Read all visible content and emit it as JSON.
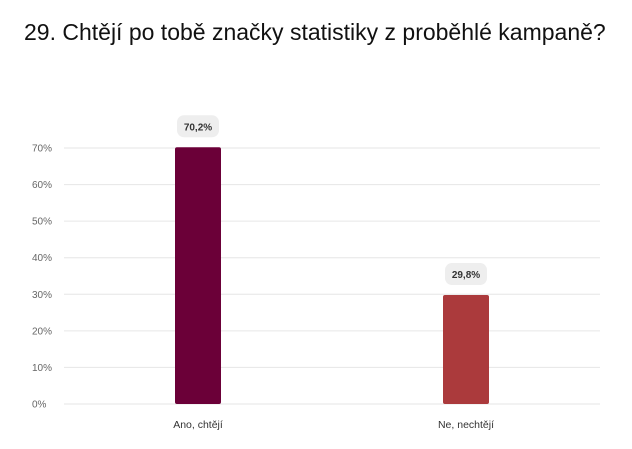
{
  "title": "29. Chtějí po tobě značky statistiky z proběhlé kampaně?",
  "colors": {
    "bar_1": "#6b0038",
    "bar_2": "#ab3a3c",
    "label_bg": "#eeeeee",
    "grid": "#e6e6e6"
  },
  "chart_data": {
    "type": "bar",
    "title": "29. Chtějí po tobě značky statistiky z proběhlé kampaně?",
    "categories": [
      "Ano, chtějí",
      "Ne, nechtějí"
    ],
    "values": [
      70.2,
      29.8
    ],
    "data_labels": [
      "70,2%",
      "29,8%"
    ],
    "y_ticks": [
      0,
      10,
      20,
      30,
      40,
      50,
      60,
      70
    ],
    "y_tick_labels": [
      "0%",
      "10%",
      "20%",
      "30%",
      "40%",
      "50%",
      "60%",
      "70%"
    ],
    "ylim": [
      0,
      70
    ],
    "grid": true,
    "legend": false
  }
}
